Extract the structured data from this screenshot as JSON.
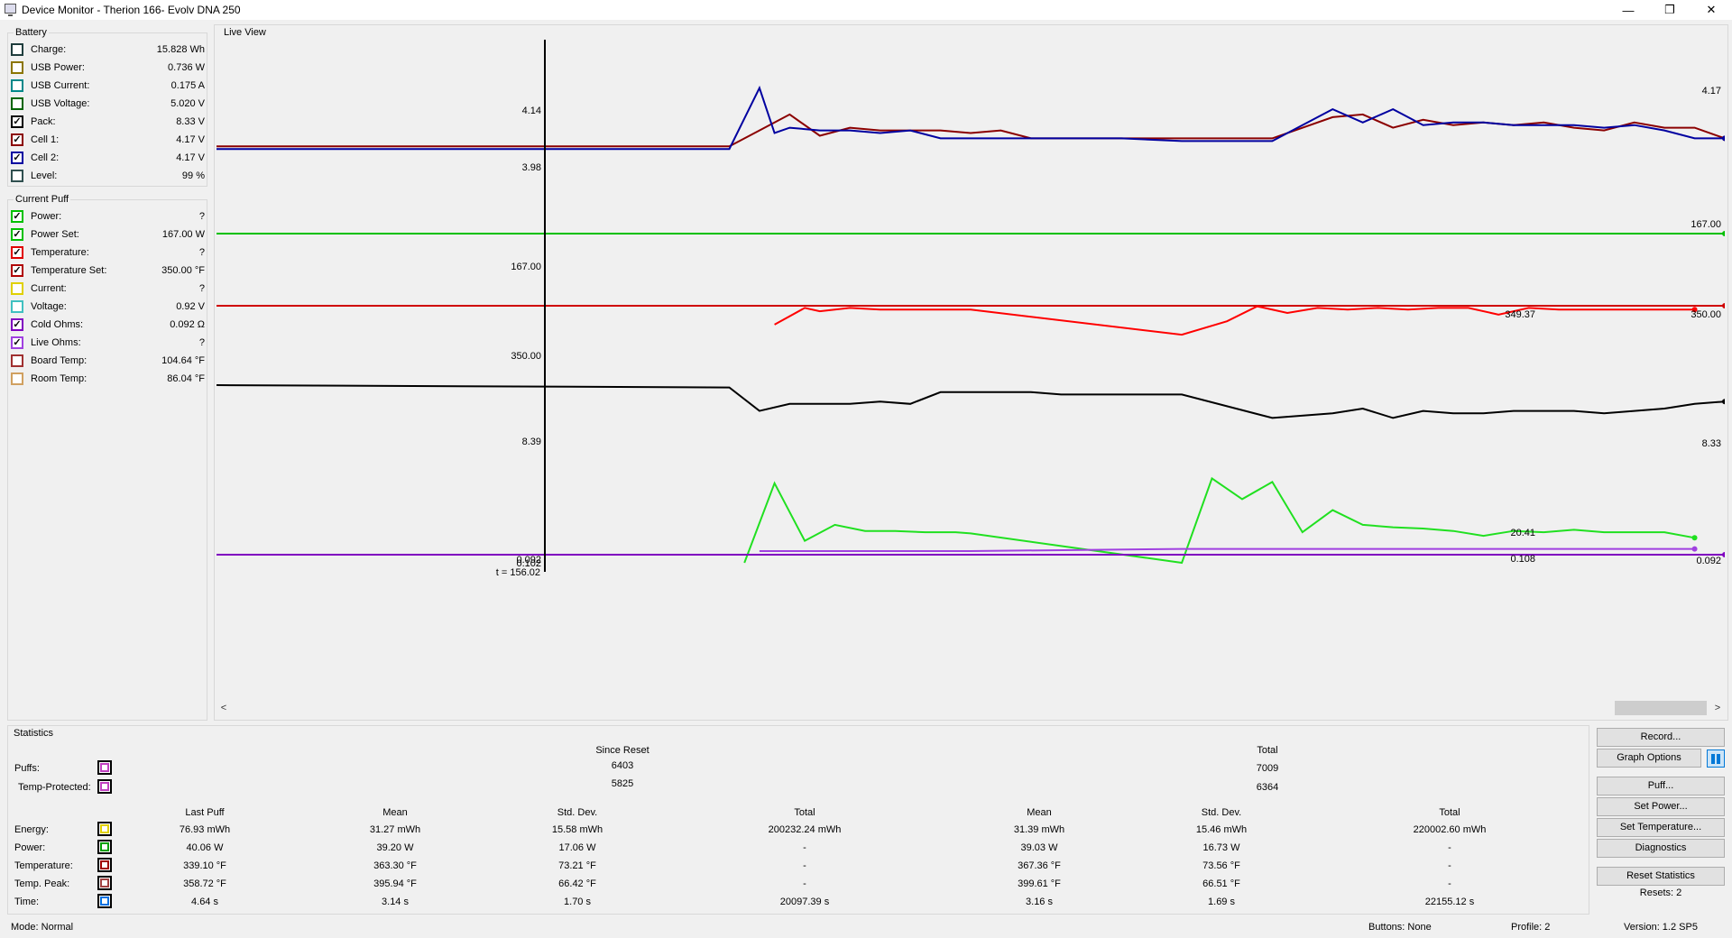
{
  "window": {
    "title": "Device Monitor - Therion 166- Evolv DNA 250",
    "minimize": "—",
    "restore": "❐",
    "close": "✕"
  },
  "battery": {
    "label": "Battery",
    "items": [
      {
        "label": "Charge:",
        "value": "15.828 Wh",
        "checked": false,
        "color": "#1f3d3d"
      },
      {
        "label": "USB Power:",
        "value": "0.736 W",
        "checked": false,
        "color": "#8b7500"
      },
      {
        "label": "USB Current:",
        "value": "0.175 A",
        "checked": false,
        "color": "#00888a"
      },
      {
        "label": "USB Voltage:",
        "value": "5.020 V",
        "checked": false,
        "color": "#006400"
      },
      {
        "label": "Pack:",
        "value": "8.33 V",
        "checked": true,
        "color": "#000000"
      },
      {
        "label": "Cell 1:",
        "value": "4.17 V",
        "checked": true,
        "color": "#8b0000"
      },
      {
        "label": "Cell 2:",
        "value": "4.17 V",
        "checked": true,
        "color": "#0000a0"
      },
      {
        "label": "Level:",
        "value": "99 %",
        "checked": false,
        "color": "#2f4f4f"
      }
    ]
  },
  "current_puff": {
    "label": "Current Puff",
    "items": [
      {
        "label": "Power:",
        "value": "?",
        "checked": true,
        "color": "#00c000"
      },
      {
        "label": "Power Set:",
        "value": "167.00 W",
        "checked": true,
        "color": "#00c000"
      },
      {
        "label": "Temperature:",
        "value": "?",
        "checked": true,
        "color": "#e00000"
      },
      {
        "label": "Temperature Set:",
        "value": "350.00 °F",
        "checked": true,
        "color": "#b00000"
      },
      {
        "label": "Current:",
        "value": "?",
        "checked": false,
        "color": "#e0d000"
      },
      {
        "label": "Voltage:",
        "value": "0.92 V",
        "checked": false,
        "color": "#40c0c0"
      },
      {
        "label": "Cold Ohms:",
        "value": "0.092 Ω",
        "checked": true,
        "color": "#8000c0"
      },
      {
        "label": "Live Ohms:",
        "value": "?",
        "checked": true,
        "color": "#a040e0"
      },
      {
        "label": "Board Temp:",
        "value": "104.64 °F",
        "checked": false,
        "color": "#a03030"
      },
      {
        "label": "Room Temp:",
        "value": "86.04 °F",
        "checked": false,
        "color": "#d0a060"
      }
    ]
  },
  "live_view": {
    "label": "Live View",
    "cursor_time_label": "t = 156.02",
    "cursor_labels": [
      "4.14",
      "3.98",
      "167.00",
      "350.00",
      "8.39",
      "0.092",
      "0.102"
    ],
    "end_labels": [
      "4.17",
      "167.00",
      "350.00",
      "349.37",
      "8.33",
      "20.41",
      "0.108",
      "0.092"
    ],
    "scroll_left": "<",
    "scroll_right": ">"
  },
  "chart_data": {
    "type": "line",
    "x_label_shown": "t = 156.02",
    "series": [
      {
        "name": "Cell 1",
        "color": "#8b0000",
        "unit": "V",
        "x": [
          0,
          34,
          36,
          38,
          40,
          42,
          44,
          46,
          48,
          50,
          52,
          54,
          56,
          60,
          64,
          70,
          74,
          76,
          78,
          80,
          82,
          84,
          86,
          88,
          90,
          92,
          94,
          96,
          98,
          100
        ],
        "values": [
          4.2,
          4.2,
          4.14,
          4.08,
          4.16,
          4.13,
          4.14,
          4.14,
          4.14,
          4.15,
          4.14,
          4.17,
          4.17,
          4.17,
          4.17,
          4.17,
          4.09,
          4.08,
          4.13,
          4.1,
          4.12,
          4.11,
          4.12,
          4.11,
          4.13,
          4.14,
          4.11,
          4.13,
          4.13,
          4.17
        ]
      },
      {
        "name": "Cell 2",
        "color": "#0000a0",
        "unit": "V",
        "x": [
          0,
          34,
          36,
          37,
          38,
          40,
          42,
          44,
          46,
          48,
          50,
          52,
          54,
          56,
          60,
          64,
          70,
          74,
          76,
          78,
          80,
          82,
          84,
          86,
          88,
          90,
          92,
          94,
          96,
          98,
          100
        ],
        "values": [
          4.21,
          4.21,
          3.98,
          4.15,
          4.13,
          4.14,
          4.14,
          4.15,
          4.14,
          4.17,
          4.17,
          4.17,
          4.17,
          4.17,
          4.17,
          4.18,
          4.18,
          4.06,
          4.11,
          4.06,
          4.12,
          4.11,
          4.11,
          4.12,
          4.12,
          4.12,
          4.13,
          4.12,
          4.14,
          4.17,
          4.17
        ]
      },
      {
        "name": "Power Set",
        "color": "#00c000",
        "unit": "W",
        "x": [
          0,
          100
        ],
        "values": [
          167.0,
          167.0
        ]
      },
      {
        "name": "Temperature Set",
        "color": "#d00000",
        "unit": "°F",
        "x": [
          0,
          100
        ],
        "values": [
          350.0,
          350.0
        ]
      },
      {
        "name": "Temperature",
        "color": "#ff0000",
        "unit": "°F",
        "x": [
          37,
          39,
          40,
          42,
          44,
          46,
          48,
          50,
          64,
          67,
          69,
          71,
          73,
          75,
          77,
          79,
          81,
          83,
          85,
          87,
          89,
          91,
          92,
          94,
          96,
          98
        ],
        "values": [
          340,
          350,
          348,
          350,
          349,
          349,
          349,
          349,
          334,
          342,
          351,
          347,
          350,
          349,
          350,
          349,
          350,
          350,
          346,
          350,
          349,
          349,
          349,
          349,
          349,
          349
        ]
      },
      {
        "name": "Pack",
        "color": "#000000",
        "unit": "V",
        "x": [
          0,
          34,
          36,
          38,
          40,
          42,
          44,
          46,
          48,
          50,
          52,
          54,
          56,
          60,
          64,
          70,
          74,
          76,
          78,
          80,
          82,
          84,
          86,
          88,
          90,
          92,
          94,
          96,
          98,
          100
        ],
        "values": [
          8.4,
          8.39,
          8.29,
          8.32,
          8.32,
          8.32,
          8.33,
          8.32,
          8.37,
          8.37,
          8.37,
          8.37,
          8.36,
          8.36,
          8.36,
          8.26,
          8.28,
          8.3,
          8.26,
          8.29,
          8.28,
          8.28,
          8.29,
          8.29,
          8.29,
          8.28,
          8.29,
          8.3,
          8.32,
          8.33
        ]
      },
      {
        "name": "Power",
        "color": "#20e020",
        "unit": "W",
        "x": [
          35,
          37,
          39,
          41,
          43,
          45,
          47,
          49,
          50,
          64,
          66,
          68,
          70,
          72,
          74,
          76,
          78,
          80,
          82,
          84,
          86,
          88,
          90,
          92,
          94,
          96,
          98
        ],
        "values": [
          0,
          65,
          18,
          31,
          26,
          26,
          25,
          25,
          24,
          0,
          69,
          52,
          66,
          25,
          43,
          31,
          29,
          28,
          26,
          22,
          26,
          25,
          27,
          25,
          25,
          25,
          20.41
        ]
      },
      {
        "name": "Cold Ohms",
        "color": "#8000c0",
        "unit": "Ω",
        "x": [
          0,
          100
        ],
        "values": [
          0.092,
          0.092
        ]
      },
      {
        "name": "Live Ohms",
        "color": "#a040e0",
        "unit": "Ω",
        "x": [
          36,
          50,
          64,
          98
        ],
        "values": [
          0.102,
          0.102,
          0.108,
          0.108
        ]
      }
    ]
  },
  "statistics": {
    "label": "Statistics",
    "since_reset_label": "Since Reset",
    "total_label": "Total",
    "puffs_label": "Puffs:",
    "puffs_since_reset": "6403",
    "puffs_total": "7009",
    "tp_label": "Temp-Protected:",
    "tp_since_reset": "5825",
    "tp_total": "6364",
    "headers": [
      "Last Puff",
      "Mean",
      "Std. Dev.",
      "Total",
      "Mean",
      "Std. Dev.",
      "Total"
    ],
    "rows": [
      {
        "label": "Energy:",
        "color": "#e0d000",
        "cells": [
          "76.93 mWh",
          "31.27 mWh",
          "15.58 mWh",
          "200232.24 mWh",
          "31.39 mWh",
          "15.46 mWh",
          "220002.60 mWh"
        ]
      },
      {
        "label": "Power:",
        "color": "#00a000",
        "cells": [
          "40.06 W",
          "39.20 W",
          "17.06 W",
          "-",
          "39.03 W",
          "16.73 W",
          "-"
        ]
      },
      {
        "label": "Temperature:",
        "color": "#a00000",
        "cells": [
          "339.10 °F",
          "363.30 °F",
          "73.21 °F",
          "-",
          "367.36 °F",
          "73.56 °F",
          "-"
        ]
      },
      {
        "label": "Temp. Peak:",
        "color": "#a04040",
        "cells": [
          "358.72 °F",
          "395.94 °F",
          "66.42 °F",
          "-",
          "399.61 °F",
          "66.51 °F",
          "-"
        ]
      },
      {
        "label": "Time:",
        "color": "#0070e0",
        "cells": [
          "4.64 s",
          "3.14 s",
          "1.70 s",
          "20097.39 s",
          "3.16 s",
          "1.69 s",
          "22155.12 s"
        ]
      }
    ]
  },
  "buttons": {
    "record": "Record...",
    "graph_options": "Graph Options",
    "puff": "Puff...",
    "set_power": "Set Power...",
    "set_temperature": "Set Temperature...",
    "diagnostics": "Diagnostics",
    "reset_statistics": "Reset Statistics",
    "resets": "Resets: 2"
  },
  "status": {
    "mode": "Mode: Normal",
    "buttons": "Buttons: None",
    "profile": "Profile: 2",
    "version": "Version: 1.2 SP5"
  }
}
